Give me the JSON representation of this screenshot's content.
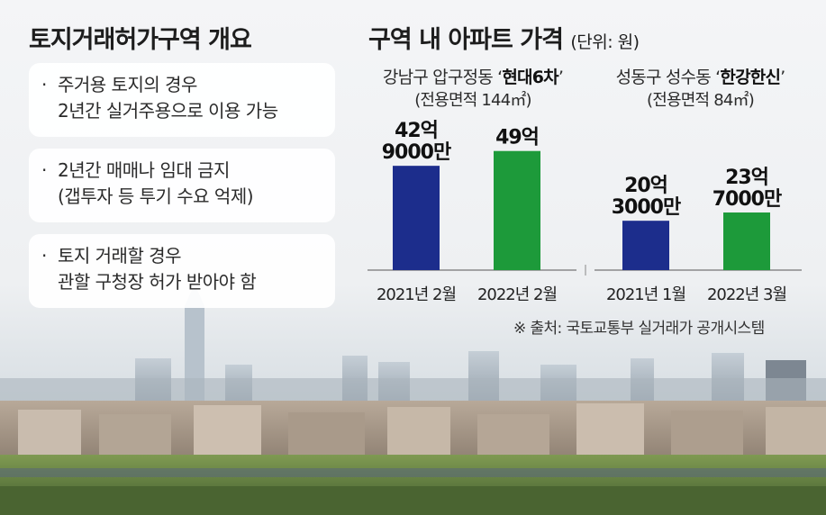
{
  "overview": {
    "title": "토지거래허가구역 개요",
    "items": [
      {
        "lines": [
          "주거용 토지의 경우",
          "2년간 실거주용으로 이용 가능"
        ]
      },
      {
        "lines": [
          "2년간 매매나 임대 금지",
          "(갭투자 등 투기 수요 억제)"
        ]
      },
      {
        "lines": [
          "토지 거래할 경우",
          "관할 구청장 허가 받아야 함"
        ]
      }
    ],
    "bullet": "·"
  },
  "chart_data": {
    "type": "bar",
    "title": "구역 내 아파트 가격",
    "unit": "(단위: 원)",
    "source": "※ 출처: 국토교통부 실거래가 공개시스템",
    "ylim": [
      0,
      60
    ],
    "y_unit": "억 원",
    "grid": false,
    "groups": [
      {
        "label_prefix": "강남구 압구정동 ‘",
        "label_highlight": "현대6차",
        "label_suffix": "’",
        "sublabel": "(전용면적 144㎡)",
        "bars": [
          {
            "category": "2021년 2월",
            "value": 42.9,
            "value_label": [
              "42억",
              "9000만"
            ],
            "color": "#1c2d8c"
          },
          {
            "category": "2022년 2월",
            "value": 49.0,
            "value_label": [
              "49억"
            ],
            "color": "#1d9a3a"
          }
        ]
      },
      {
        "label_prefix": "성동구 성수동 ‘",
        "label_highlight": "한강한신",
        "label_suffix": "’",
        "sublabel": "(전용면적 84㎡)",
        "bars": [
          {
            "category": "2021년 1월",
            "value": 20.3,
            "value_label": [
              "20억",
              "3000만"
            ],
            "color": "#1c2d8c"
          },
          {
            "category": "2022년 3월",
            "value": 23.7,
            "value_label": [
              "23억",
              "7000만"
            ],
            "color": "#1d9a3a"
          }
        ]
      }
    ]
  }
}
